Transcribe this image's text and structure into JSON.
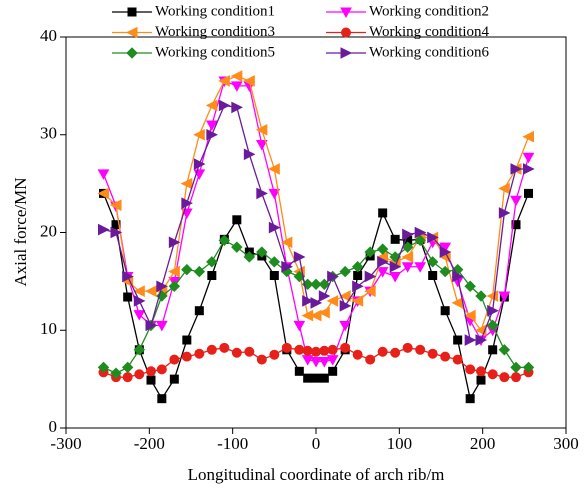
{
  "chart_data": {
    "type": "line",
    "xlabel": "Longitudinal coordinate of arch rib/m",
    "ylabel": "Axial force/MN",
    "xlim": [
      -300,
      300
    ],
    "xticks": [
      -300,
      -200,
      -100,
      0,
      100,
      200,
      300
    ],
    "ylim": [
      0,
      40
    ],
    "yticks": [
      0,
      10,
      20,
      30,
      40
    ],
    "x": [
      -255,
      -240,
      -226,
      -212,
      -198,
      -185,
      -170,
      -155,
      -140,
      -125,
      -110,
      -95,
      -80,
      -65,
      -50,
      -35,
      -20,
      -10,
      0,
      10,
      20,
      35,
      50,
      65,
      80,
      95,
      110,
      125,
      140,
      155,
      170,
      185,
      198,
      212,
      226,
      240,
      255
    ],
    "series": [
      {
        "name": "Working condition1",
        "color": "#000000",
        "marker": "square",
        "values": [
          24,
          20.8,
          13.4,
          8,
          4.9,
          3,
          5,
          9,
          12,
          15.6,
          19.3,
          21.3,
          18,
          17.6,
          15.6,
          8,
          5.8,
          5.1,
          5.1,
          5.1,
          5.8,
          8,
          15.6,
          17.6,
          22,
          19.3,
          19.2,
          19.3,
          15.6,
          12,
          9,
          3,
          4.9,
          8,
          13.4,
          20.8,
          24
        ]
      },
      {
        "name": "Working condition2",
        "color": "#ff00ff",
        "marker": "triangle-down",
        "values": [
          26,
          22.7,
          15.5,
          11.6,
          10.5,
          10.5,
          15,
          22,
          26,
          31,
          35.5,
          35,
          35,
          29,
          24,
          16.5,
          10.5,
          7,
          6.8,
          6.8,
          7,
          10.5,
          13,
          14,
          16,
          15.5,
          16.5,
          16.5,
          19,
          18.5,
          15,
          11,
          9,
          10,
          13.5,
          23.3,
          27.7
        ]
      },
      {
        "name": "Working condition3",
        "color": "#ff8c1a",
        "marker": "triangle-left",
        "values": [
          24,
          22.8,
          15,
          14,
          14,
          14,
          16,
          25,
          30,
          33,
          35.5,
          36,
          35.5,
          30.5,
          26.5,
          19,
          16,
          11.5,
          11.5,
          11.8,
          13,
          13.5,
          13,
          14,
          17.5,
          17,
          17.5,
          19.5,
          19.5,
          17.5,
          12.8,
          11.5,
          10,
          13.5,
          24.5,
          26.5,
          29.8
        ]
      },
      {
        "name": "Working condition4",
        "color": "#e8201a",
        "marker": "circle",
        "values": [
          5.7,
          5.2,
          5.2,
          5.5,
          5.8,
          6,
          7,
          7.3,
          7.6,
          8,
          8.2,
          7.7,
          7.8,
          7,
          7.5,
          8.2,
          8,
          7.9,
          7.8,
          7.9,
          8,
          8.2,
          7.5,
          7,
          7.8,
          7.7,
          8.2,
          8,
          7.6,
          7.3,
          7,
          6,
          5.8,
          5.5,
          5.2,
          5.2,
          5.7
        ]
      },
      {
        "name": "Working condition5",
        "color": "#1e8c1e",
        "marker": "diamond",
        "values": [
          6.2,
          5.6,
          6.2,
          8,
          10.5,
          13.5,
          14.5,
          16.2,
          16,
          17,
          19.2,
          18.5,
          17.5,
          18,
          17,
          16,
          15.5,
          14.7,
          14.7,
          14.7,
          15.5,
          16,
          16.5,
          18,
          18.3,
          17.5,
          18.5,
          19.2,
          17,
          16,
          16.2,
          14.5,
          13.5,
          10.5,
          8,
          6.2,
          6.2
        ]
      },
      {
        "name": "Working condition6",
        "color": "#6a1b9a",
        "marker": "triangle-right",
        "values": [
          20.3,
          20,
          15.5,
          13,
          10.5,
          14.5,
          19,
          23,
          27,
          30,
          33,
          32.8,
          28,
          24,
          20.5,
          16.5,
          17.5,
          13,
          12.8,
          13.5,
          15.5,
          12.5,
          14.5,
          15.5,
          17,
          16.5,
          19.8,
          20,
          19.5,
          18,
          15.5,
          9,
          9,
          12,
          22,
          26.5,
          26.5
        ]
      }
    ]
  }
}
